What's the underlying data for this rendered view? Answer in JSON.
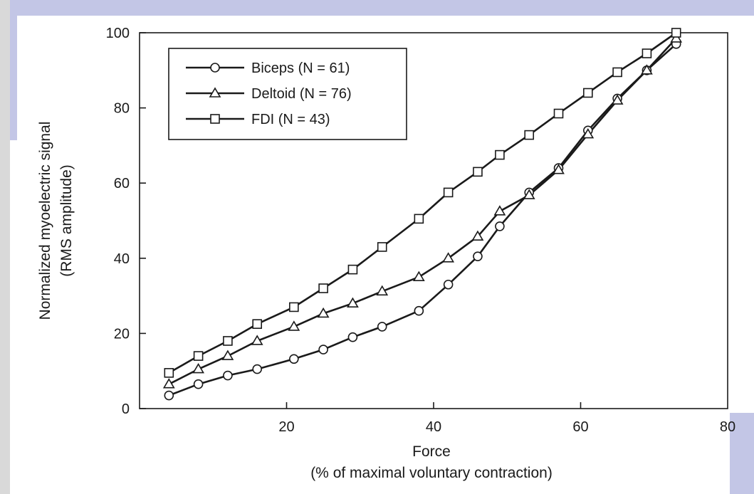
{
  "theme": {
    "band_color": "#c3c6e6",
    "band_gray": "#d9d9d9",
    "ink": "#1a1a1a"
  },
  "chart_data": {
    "type": "line",
    "title": "",
    "xlabel": "Force",
    "xlabel_sub": "(% of maximal voluntary contraction)",
    "ylabel": "Normalized myoelectric signal",
    "ylabel_sub": "(RMS amplitude)",
    "xlim": [
      0,
      80
    ],
    "ylim": [
      0,
      100
    ],
    "xticks": [
      20,
      40,
      60,
      80
    ],
    "yticks": [
      0,
      20,
      40,
      60,
      80,
      100
    ],
    "grid": false,
    "legend_position": "top-left",
    "series": [
      {
        "name": "Biceps (N = 61)",
        "marker": "circle",
        "x": [
          4,
          8,
          12,
          16,
          21,
          25,
          29,
          33,
          38,
          42,
          46,
          49,
          53,
          57,
          61,
          65,
          69,
          73
        ],
        "values": [
          3.5,
          6.5,
          8.8,
          10.5,
          13.2,
          15.7,
          19.0,
          21.8,
          26.0,
          33.0,
          40.5,
          48.5,
          57.5,
          64.0,
          74.0,
          82.5,
          90.0,
          97.0
        ]
      },
      {
        "name": "Deltoid (N = 76)",
        "marker": "triangle",
        "x": [
          4,
          8,
          12,
          16,
          21,
          25,
          29,
          33,
          38,
          42,
          46,
          49,
          53,
          57,
          61,
          65,
          69,
          73
        ],
        "values": [
          6.5,
          10.5,
          14.0,
          18.0,
          21.8,
          25.3,
          28.0,
          31.2,
          35.0,
          40.0,
          45.8,
          52.5,
          56.8,
          63.5,
          73.0,
          82.0,
          90.0,
          98.5
        ]
      },
      {
        "name": "FDI (N = 43)",
        "marker": "square",
        "x": [
          4,
          8,
          12,
          16,
          21,
          25,
          29,
          33,
          38,
          42,
          46,
          49,
          53,
          57,
          61,
          65,
          69,
          73
        ],
        "values": [
          9.5,
          14.0,
          18.0,
          22.5,
          27.0,
          32.0,
          37.0,
          43.0,
          50.5,
          57.5,
          63.0,
          67.5,
          72.8,
          78.5,
          84.0,
          89.5,
          94.5,
          100.0
        ]
      }
    ]
  }
}
